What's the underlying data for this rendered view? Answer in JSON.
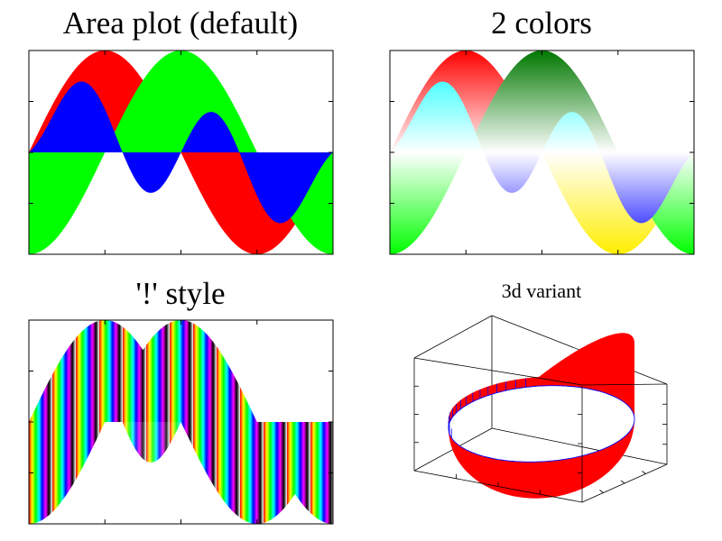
{
  "chart_data": [
    {
      "title": "Area plot (default)",
      "type": "area",
      "style": "solid",
      "x": [
        -1,
        1
      ],
      "ylim": [
        -1,
        1
      ],
      "grid": false,
      "series": [
        {
          "function": "y = -sin(pi*x)",
          "color": "#ff0000"
        },
        {
          "function": "y = cos(pi*x)",
          "color": "#00ff00"
        },
        {
          "function": "y = 0.6*sin(pi*x)*cos(1.5*pi*x)+0.2*sin(2pi*x)",
          "color": "#0000ff"
        }
      ]
    },
    {
      "title": "2 colors",
      "type": "area",
      "style": "two-color gradient",
      "x": [
        -1,
        1
      ],
      "ylim": [
        -1,
        1
      ],
      "grid": false,
      "series": [
        {
          "function": "y = -sin(pi*x)",
          "color_pos": "#ff0000",
          "color_neg": "#ffee00"
        },
        {
          "function": "y = cos(pi*x)",
          "color_pos": "#007700",
          "color_neg": "#00ff00"
        },
        {
          "function": "y = 0.6*sin(pi*x)*cos(1.5*pi*x)+0.2*sin(2pi*x)",
          "color_pos": "#00ffff",
          "color_neg": "#0000ff"
        }
      ]
    },
    {
      "title": "'!' style",
      "type": "area",
      "style": "color stripes along x",
      "x": [
        -1,
        1
      ],
      "ylim": [
        -1,
        1
      ],
      "grid": false,
      "palette": [
        "#ff0000",
        "#ffff00",
        "#00ff00",
        "#00ffff",
        "#0000ff",
        "#ff00ff",
        "#000000",
        "#ffffff"
      ]
    },
    {
      "title": "3d variant",
      "type": "area3d",
      "style": "ribbon",
      "color": "#ff0000",
      "mesh_color": "#0000ff"
    }
  ]
}
